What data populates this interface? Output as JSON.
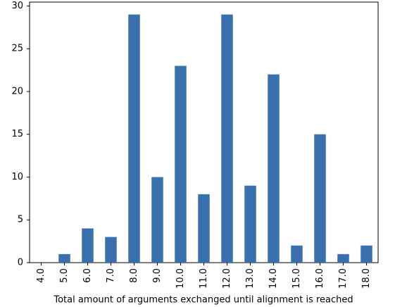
{
  "chart_data": {
    "type": "bar",
    "xlabel": "Total amount of arguments exchanged until alignment is reached",
    "categories": [
      "4.0",
      "5.0",
      "6.0",
      "7.0",
      "8.0",
      "9.0",
      "10.0",
      "11.0",
      "12.0",
      "13.0",
      "14.0",
      "15.0",
      "16.0",
      "17.0",
      "18.0"
    ],
    "values": [
      0,
      1,
      4,
      3,
      29,
      10,
      23,
      8,
      29,
      9,
      22,
      2,
      15,
      1,
      2
    ],
    "color": "#3a70ac",
    "ylim": [
      0,
      30.45
    ],
    "yticks": [
      0,
      5,
      10,
      15,
      20,
      25,
      30
    ],
    "grid": false
  }
}
